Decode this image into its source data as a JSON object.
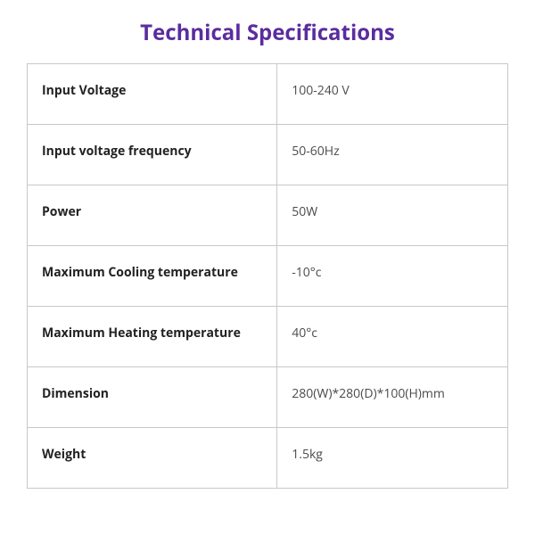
{
  "title": "Technical Specifications",
  "title_color": "#5a2d9e",
  "table": {
    "type": "table",
    "border_color": "#c8c8c8",
    "label_fontweight": 700,
    "label_color": "#222222",
    "value_color": "#4a4a4a",
    "label_fontsize": 14,
    "value_fontsize": 14,
    "column_widths": [
      "52%",
      "48%"
    ],
    "rows": [
      {
        "label": "Input Voltage",
        "value": "100-240 V"
      },
      {
        "label": "Input voltage frequency",
        "value": "50-60Hz"
      },
      {
        "label": "Power",
        "value": "50W"
      },
      {
        "label": "Maximum Cooling temperature",
        "value": "-10°c"
      },
      {
        "label": "Maximum Heating temperature",
        "value": "40°c"
      },
      {
        "label": "Dimension",
        "value": "280(W)*280(D)*100(H)mm"
      },
      {
        "label": "Weight",
        "value": "1.5kg"
      }
    ]
  }
}
